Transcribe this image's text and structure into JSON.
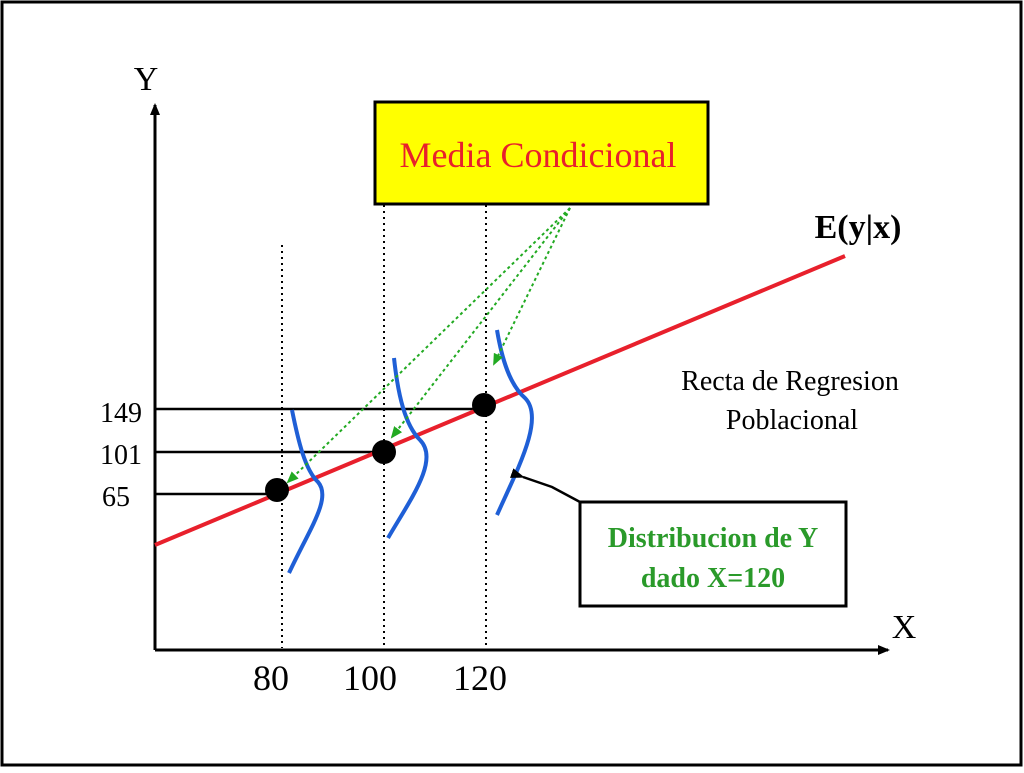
{
  "colors": {
    "frame": "#000000",
    "regression_line": "#e8202c",
    "distribution_curve": "#1f5fd6",
    "arrow_green": "#22aa22",
    "callout_fill": "#ffff00",
    "callout_text": "#e8202c",
    "distribution_label_text": "#2a9a2a",
    "points": "#000000"
  },
  "axes": {
    "y_label": "Y",
    "x_label": "X",
    "x_ticks": [
      "80",
      "100",
      "120"
    ],
    "y_ticks": [
      "149",
      "101",
      "65"
    ]
  },
  "labels": {
    "callout": "Media Condicional",
    "expectation": "E(y|x)",
    "regression_line_1": "Recta de Regresion",
    "regression_line_2": "Poblacional",
    "distribution_1": "Distribucion de Y",
    "distribution_2": "dado X=120"
  },
  "points": [
    {
      "x": "80",
      "y": "65"
    },
    {
      "x": "100",
      "y": "101"
    },
    {
      "x": "120",
      "y": "149"
    }
  ]
}
